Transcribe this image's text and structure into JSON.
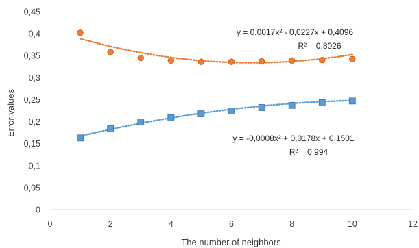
{
  "chart_data": {
    "type": "scatter",
    "title": "",
    "xlabel": "The number of neighbors",
    "ylabel": "Error values",
    "xlim": [
      0,
      12
    ],
    "ylim": [
      0,
      0.45
    ],
    "x_ticks": [
      "0",
      "2",
      "4",
      "6",
      "8",
      "10",
      "12"
    ],
    "y_ticks": [
      "0",
      "0,05",
      "0,1",
      "0,15",
      "0,2",
      "0,25",
      "0,3",
      "0,35",
      "0,4",
      "0,45"
    ],
    "grid": false,
    "legend": "none",
    "series": [
      {
        "marker": "circle",
        "color": "#ED7D31",
        "x": [
          1,
          2,
          3,
          4,
          5,
          6,
          7,
          8,
          9,
          10
        ],
        "y": [
          0.402,
          0.358,
          0.345,
          0.339,
          0.336,
          0.336,
          0.337,
          0.339,
          0.34,
          0.342
        ],
        "trendline": {
          "type": "polynomial",
          "coefficients": [
            0.0017,
            -0.0227,
            0.4096
          ],
          "equation": "y = 0,0017x² - 0,0227x + 0,4096",
          "r2": "R² = 0,8026"
        }
      },
      {
        "marker": "square",
        "color": "#5B9BD5",
        "x": [
          1,
          2,
          3,
          4,
          5,
          6,
          7,
          8,
          9,
          10
        ],
        "y": [
          0.163,
          0.184,
          0.199,
          0.209,
          0.218,
          0.224,
          0.232,
          0.237,
          0.243,
          0.247
        ],
        "trendline": {
          "type": "polynomial",
          "coefficients": [
            -0.0008,
            0.0178,
            0.1501
          ],
          "equation": "y = -0,0008x² + 0,0178x + 0,1501",
          "r2": "R² = 0,994"
        }
      }
    ]
  }
}
